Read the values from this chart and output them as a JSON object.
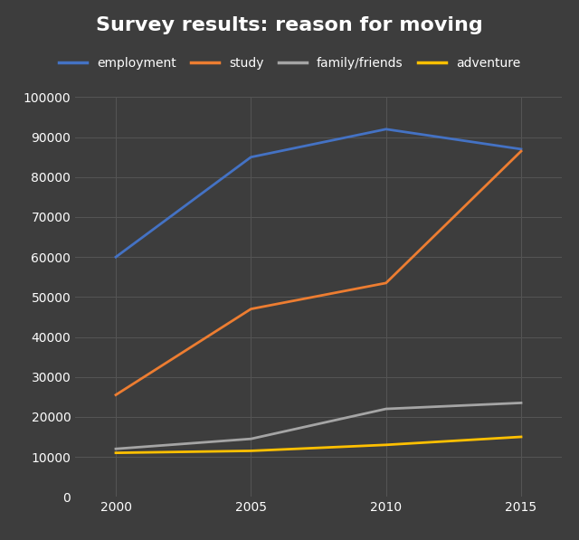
{
  "title": "Survey results: reason for moving",
  "background_color": "#3d3d3d",
  "text_color": "#ffffff",
  "grid_color": "#555555",
  "years": [
    2000,
    2005,
    2010,
    2015
  ],
  "series": [
    {
      "label": "employment",
      "color": "#4472c4",
      "values": [
        60000,
        85000,
        92000,
        87000
      ]
    },
    {
      "label": "study",
      "color": "#ed7d31",
      "values": [
        25500,
        47000,
        53500,
        86500
      ]
    },
    {
      "label": "family/friends",
      "color": "#a5a5a5",
      "values": [
        12000,
        14500,
        22000,
        23500
      ]
    },
    {
      "label": "adventure",
      "color": "#ffc000",
      "values": [
        11000,
        11500,
        13000,
        15000
      ]
    }
  ],
  "xlim": [
    1998.5,
    2016.5
  ],
  "ylim": [
    0,
    100000
  ],
  "xticks": [
    2000,
    2005,
    2010,
    2015
  ],
  "yticks": [
    0,
    10000,
    20000,
    30000,
    40000,
    50000,
    60000,
    70000,
    80000,
    90000,
    100000
  ],
  "line_width": 2.0,
  "title_fontsize": 16,
  "legend_fontsize": 10,
  "tick_fontsize": 10
}
